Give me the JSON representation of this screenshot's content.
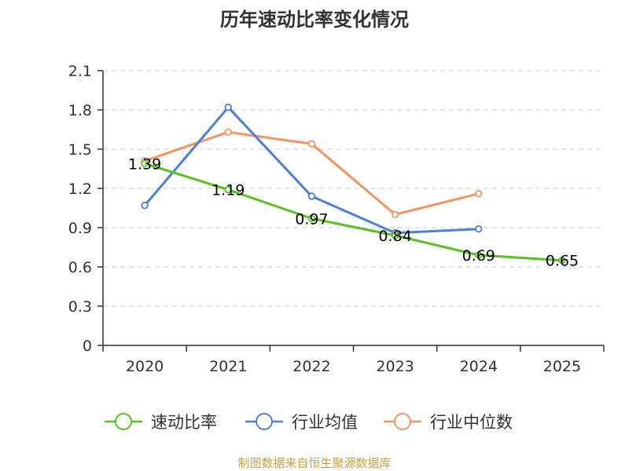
{
  "chart_data": {
    "type": "line",
    "title": "历年速动比率变化情况",
    "categories": [
      "2020",
      "2021",
      "2022",
      "2023",
      "2024",
      "2025"
    ],
    "ylim": [
      0,
      2.1
    ],
    "yticks": [
      "0",
      "0.3",
      "0.6",
      "0.9",
      "1.2",
      "1.5",
      "1.8",
      "2.1"
    ],
    "grid": true,
    "legend_position": "bottom",
    "series": [
      {
        "name": "速动比率",
        "color": "#52c41a",
        "values": [
          1.39,
          1.19,
          0.97,
          0.84,
          0.69,
          0.65
        ],
        "labels": [
          "1.39",
          "1.19",
          "0.97",
          "0.84",
          "0.69",
          "0.65"
        ]
      },
      {
        "name": "行业均值",
        "color": "#4a7fdb",
        "values": [
          1.07,
          1.82,
          1.14,
          0.86,
          0.89,
          null
        ]
      },
      {
        "name": "行业中位数",
        "color": "#f7925c",
        "values": [
          1.41,
          1.63,
          1.54,
          1.0,
          1.16,
          null
        ]
      }
    ]
  },
  "source": "制图数据来自恒生聚源数据库"
}
